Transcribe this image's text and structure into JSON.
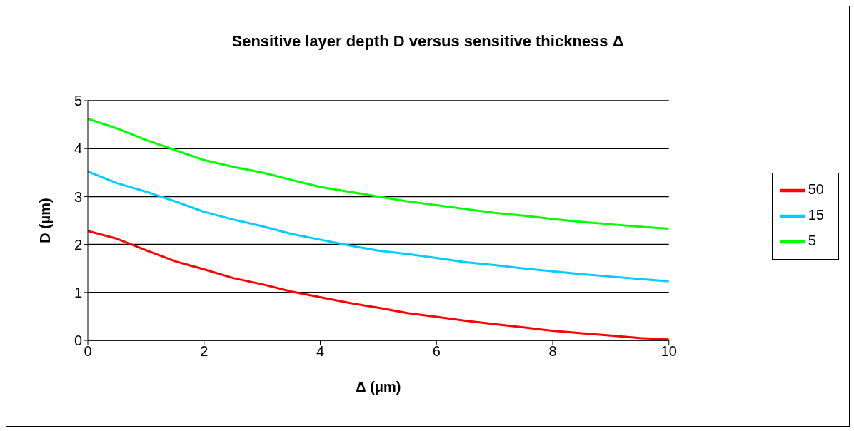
{
  "chart_data": {
    "type": "line",
    "title": "Sensitive layer depth D versus sensitive thickness Δ",
    "xlabel": "Δ (μm)",
    "ylabel": "D (μm)",
    "x": [
      0,
      0.5,
      1,
      1.5,
      2,
      2.5,
      3,
      3.5,
      4,
      4.5,
      5,
      5.5,
      6,
      6.5,
      7,
      7.5,
      8,
      8.5,
      9,
      9.5,
      10
    ],
    "series": [
      {
        "name": "50",
        "color": "#ff0000",
        "values": [
          2.28,
          2.12,
          1.88,
          1.65,
          1.48,
          1.3,
          1.17,
          1.02,
          0.9,
          0.78,
          0.68,
          0.57,
          0.49,
          0.41,
          0.34,
          0.27,
          0.2,
          0.15,
          0.1,
          0.05,
          0.02
        ]
      },
      {
        "name": "15",
        "color": "#00ccff",
        "values": [
          3.52,
          3.28,
          3.1,
          2.9,
          2.68,
          2.52,
          2.38,
          2.22,
          2.1,
          1.98,
          1.87,
          1.8,
          1.72,
          1.63,
          1.57,
          1.5,
          1.44,
          1.38,
          1.33,
          1.28,
          1.23
        ]
      },
      {
        "name": "5",
        "color": "#00ff00",
        "values": [
          4.62,
          4.42,
          4.18,
          3.97,
          3.76,
          3.62,
          3.5,
          3.35,
          3.2,
          3.1,
          3.0,
          2.9,
          2.82,
          2.74,
          2.66,
          2.6,
          2.53,
          2.47,
          2.42,
          2.37,
          2.33
        ]
      }
    ],
    "xlim": [
      0,
      10
    ],
    "xticks": [
      0,
      2,
      4,
      6,
      8,
      10
    ],
    "ylim": [
      0,
      5
    ],
    "yticks": [
      0,
      1,
      2,
      3,
      4,
      5
    ],
    "grid": "y",
    "legend": "right",
    "marker": "none",
    "line_style": "solid"
  }
}
